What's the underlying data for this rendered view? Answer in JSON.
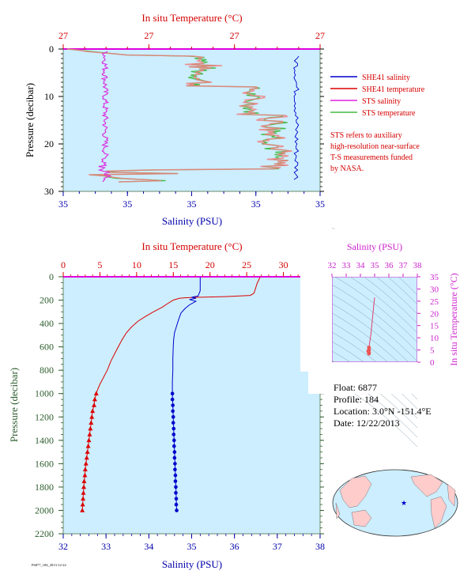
{
  "top_panel": {
    "top_axis_title": "In situ Temperature (°C)",
    "top_ticks": [
      "27",
      "27",
      "27",
      "27"
    ],
    "bottom_axis_title": "Salinity (PSU)",
    "bottom_ticks": [
      "35",
      "35",
      "35",
      "35",
      "35"
    ],
    "y_axis_title": "Pressure (decibar)",
    "y_ticks": [
      "0",
      "10",
      "20",
      "30"
    ],
    "legend": [
      {
        "label": "SHE41 salinity",
        "color": "#0000cc"
      },
      {
        "label": "SHE41 temperature",
        "color": "#dd0000"
      },
      {
        "label": "STS salinity",
        "color": "#dd22dd"
      },
      {
        "label": "STS temperature",
        "color": "#44bb44"
      }
    ],
    "note_lines": [
      "STS refers to auxiliary",
      "high-resolution near-surface",
      "T-S measurements funded",
      "by NASA."
    ]
  },
  "bottom_panel": {
    "top_axis_title": "In situ Temperature (°C)",
    "top_ticks": [
      "0",
      "5",
      "10",
      "15",
      "20",
      "25",
      "30",
      "35"
    ],
    "bottom_axis_title": "Salinity (PSU)",
    "bottom_ticks": [
      "32",
      "33",
      "34",
      "35",
      "36",
      "37",
      "38"
    ],
    "y_axis_title": "Pressure (decibar)",
    "y_ticks": [
      "0",
      "200",
      "400",
      "600",
      "800",
      "1000",
      "1200",
      "1400",
      "1600",
      "1800",
      "2000",
      "2200"
    ]
  },
  "ts_panel": {
    "top_axis_title": "Salinity (PSU)",
    "top_ticks": [
      "32",
      "33",
      "34",
      "35",
      "36",
      "37",
      "38"
    ],
    "right_axis_title": "In situ Temperature (°C)",
    "right_ticks": [
      "0",
      "5",
      "10",
      "15",
      "20",
      "25",
      "30",
      "35"
    ]
  },
  "info": {
    "float_line": "Float: 6877",
    "profile_line": "Profile: 184",
    "location_line": "Location: 3.0°N -151.4°E",
    "date_line": "Date: 12/22/2013"
  },
  "footer_code": "F6877_184_2013-12-22",
  "colors": {
    "background": "#cceeff",
    "temperature": "#dd0000",
    "salinity": "#0000cc",
    "sts_salinity": "#dd22dd",
    "sts_temperature": "#44bb44"
  },
  "chart_data": [
    {
      "type": "line",
      "panel": "bottom",
      "ylim": [
        2200,
        0
      ],
      "series": [
        {
          "name": "SHE41 temperature",
          "axis": "temperature",
          "xlim": [
            0,
            35
          ],
          "points": [
            [
              26.8,
              5
            ],
            [
              26.7,
              20
            ],
            [
              26.4,
              60
            ],
            [
              26.2,
              100
            ],
            [
              26.0,
              140
            ],
            [
              25.5,
              160
            ],
            [
              22,
              170
            ],
            [
              18.5,
              175
            ],
            [
              16.5,
              180
            ],
            [
              15.8,
              185
            ],
            [
              15.0,
              200
            ],
            [
              14.2,
              230
            ],
            [
              13.5,
              260
            ],
            [
              12.3,
              300
            ],
            [
              11.2,
              340
            ],
            [
              10.2,
              380
            ],
            [
              9.3,
              430
            ],
            [
              8.6,
              480
            ],
            [
              8.0,
              540
            ],
            [
              7.5,
              600
            ],
            [
              7.0,
              660
            ],
            [
              6.5,
              720
            ],
            [
              6.0,
              800
            ],
            [
              5.5,
              860
            ],
            [
              5.0,
              920
            ],
            [
              4.6,
              980
            ],
            [
              4.5,
              1000
            ],
            [
              4.3,
              1050
            ],
            [
              4.2,
              1100
            ],
            [
              4.0,
              1150
            ],
            [
              3.9,
              1200
            ],
            [
              3.8,
              1250
            ],
            [
              3.7,
              1300
            ],
            [
              3.6,
              1350
            ],
            [
              3.5,
              1400
            ],
            [
              3.4,
              1450
            ],
            [
              3.3,
              1500
            ],
            [
              3.2,
              1550
            ],
            [
              3.1,
              1600
            ],
            [
              3.0,
              1650
            ],
            [
              2.95,
              1700
            ],
            [
              2.85,
              1750
            ],
            [
              2.8,
              1800
            ],
            [
              2.75,
              1850
            ],
            [
              2.7,
              1900
            ],
            [
              2.65,
              1950
            ],
            [
              2.6,
              2000
            ]
          ]
        },
        {
          "name": "SHE41 salinity",
          "axis": "salinity",
          "xlim": [
            32,
            38
          ],
          "points": [
            [
              35.2,
              5
            ],
            [
              35.2,
              60
            ],
            [
              35.2,
              120
            ],
            [
              35.15,
              165
            ],
            [
              35.0,
              175
            ],
            [
              35.1,
              185
            ],
            [
              34.95,
              195
            ],
            [
              35.1,
              210
            ],
            [
              34.95,
              240
            ],
            [
              34.85,
              270
            ],
            [
              34.75,
              310
            ],
            [
              34.7,
              360
            ],
            [
              34.65,
              420
            ],
            [
              34.6,
              480
            ],
            [
              34.58,
              540
            ],
            [
              34.57,
              600
            ],
            [
              34.56,
              700
            ],
            [
              34.56,
              800
            ],
            [
              34.55,
              900
            ],
            [
              34.55,
              1000
            ],
            [
              34.56,
              1100
            ],
            [
              34.57,
              1200
            ],
            [
              34.58,
              1300
            ],
            [
              34.59,
              1400
            ],
            [
              34.6,
              1500
            ],
            [
              34.61,
              1600
            ],
            [
              34.62,
              1700
            ],
            [
              34.63,
              1800
            ],
            [
              34.64,
              1900
            ],
            [
              34.65,
              2000
            ]
          ]
        }
      ],
      "bottle_markers": {
        "pressures": [
          1000,
          1050,
          1100,
          1150,
          1200,
          1250,
          1300,
          1350,
          1400,
          1450,
          1500,
          1550,
          1600,
          1650,
          1700,
          1750,
          1800,
          1850,
          1900,
          1950,
          2000
        ],
        "temperature": [
          4.5,
          4.3,
          4.2,
          4.0,
          3.9,
          3.8,
          3.7,
          3.6,
          3.5,
          3.4,
          3.3,
          3.2,
          3.1,
          3.0,
          2.95,
          2.85,
          2.8,
          2.75,
          2.7,
          2.65,
          2.6
        ],
        "salinity": [
          34.55,
          34.55,
          34.56,
          34.56,
          34.57,
          34.57,
          34.58,
          34.58,
          34.59,
          34.59,
          34.6,
          34.6,
          34.61,
          34.61,
          34.62,
          34.62,
          34.63,
          34.63,
          34.64,
          34.64,
          34.65
        ]
      }
    },
    {
      "type": "scatter",
      "panel": "ts",
      "xlabel": "Salinity (PSU)",
      "ylabel": "In situ Temperature (°C)",
      "xlim": [
        32,
        38
      ],
      "ylim": [
        0,
        35
      ],
      "points": [
        [
          35.0,
          26.5
        ],
        [
          34.95,
          24
        ],
        [
          34.9,
          21
        ],
        [
          34.85,
          18
        ],
        [
          34.8,
          15
        ],
        [
          34.75,
          12
        ],
        [
          34.7,
          10
        ],
        [
          34.65,
          8
        ],
        [
          34.6,
          6
        ],
        [
          34.6,
          5
        ],
        [
          34.55,
          4.5
        ],
        [
          34.6,
          4
        ],
        [
          34.6,
          3.5
        ]
      ]
    },
    {
      "type": "line",
      "panel": "top",
      "ylim": [
        30,
        0
      ],
      "note": "near-surface high-resolution profile, 0-30 decibar"
    }
  ]
}
